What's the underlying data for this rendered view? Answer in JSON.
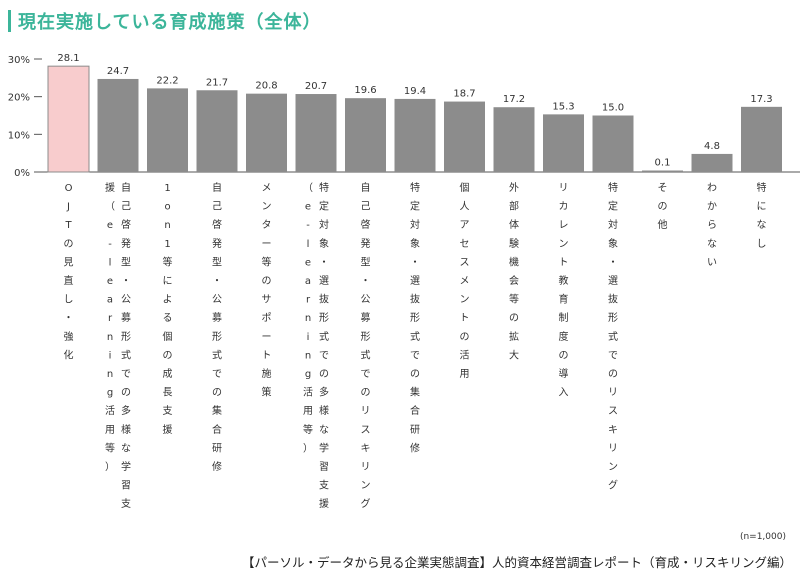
{
  "chart_data": {
    "type": "bar",
    "title": "現在実施している育成施策（全体）",
    "categories": [
      "OJTの見直し・強化",
      "自己啓発型・公募形式での多様な学習支援（e-learning活用等）",
      "1on1等による個の成長支援",
      "自己啓発型・公募形式での集合研修",
      "メンター等のサポート施策",
      "特定対象・選抜形式での多様な学習支援（e-learning活用等）",
      "自己啓発型・公募形式でのリスキリング",
      "特定対象・選抜形式での集合研修",
      "個人アセスメントの活用",
      "外部体験機会等の拡大",
      "リカレント教育制度の導入",
      "特定対象・選抜形式でのリスキリング",
      "その他",
      "わからない",
      "特になし"
    ],
    "values": [
      28.1,
      24.7,
      22.2,
      21.7,
      20.8,
      20.7,
      19.6,
      19.4,
      18.7,
      17.2,
      15.3,
      15.0,
      0.1,
      4.8,
      17.3
    ],
    "value_labels": [
      "28.1",
      "24.7",
      "22.2",
      "21.7",
      "20.8",
      "20.7",
      "19.6",
      "19.4",
      "18.7",
      "17.2",
      "15.3",
      "15.0",
      "0.1",
      "4.8",
      "17.3"
    ],
    "highlight_index": 0,
    "yticks": [
      "30%",
      "20%",
      "10%",
      "0%"
    ],
    "ylim": [
      0,
      30
    ],
    "colors": {
      "bar": "#8c8c8c",
      "highlight": "#f8cccd",
      "highlight_border": "#8c8c8c",
      "title": "#3cb59a"
    }
  },
  "sample_note": "(n=1,000)",
  "source": "【パーソル・データから見る企業実態調査】人的資本経営調査レポート（育成・リスキリング編）"
}
